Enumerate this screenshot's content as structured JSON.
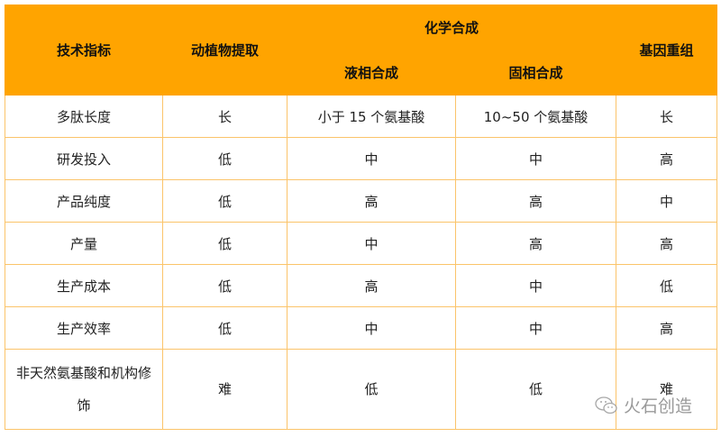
{
  "header": {
    "indicator": "技术指标",
    "extraction": "动植物提取",
    "chemical": "化学合成",
    "liquid": "液相合成",
    "solid": "固相合成",
    "recombinant": "基因重组"
  },
  "rows": [
    [
      "多肽长度",
      "长",
      "小于 15 个氨基酸",
      "10~50 个氨基酸",
      "长"
    ],
    [
      "研发投入",
      "低",
      "中",
      "中",
      "高"
    ],
    [
      "产品纯度",
      "低",
      "高",
      "高",
      "中"
    ],
    [
      "产量",
      "低",
      "中",
      "高",
      "高"
    ],
    [
      "生产成本",
      "低",
      "高",
      "中",
      "低"
    ],
    [
      "生产效率",
      "低",
      "中",
      "中",
      "高"
    ],
    [
      "非天然氨基酸和机构修饰",
      "难",
      "低",
      "低",
      "难"
    ]
  ],
  "watermark": "火石创造",
  "colors": {
    "header": "#ffa400",
    "border": "#fbc46a"
  }
}
